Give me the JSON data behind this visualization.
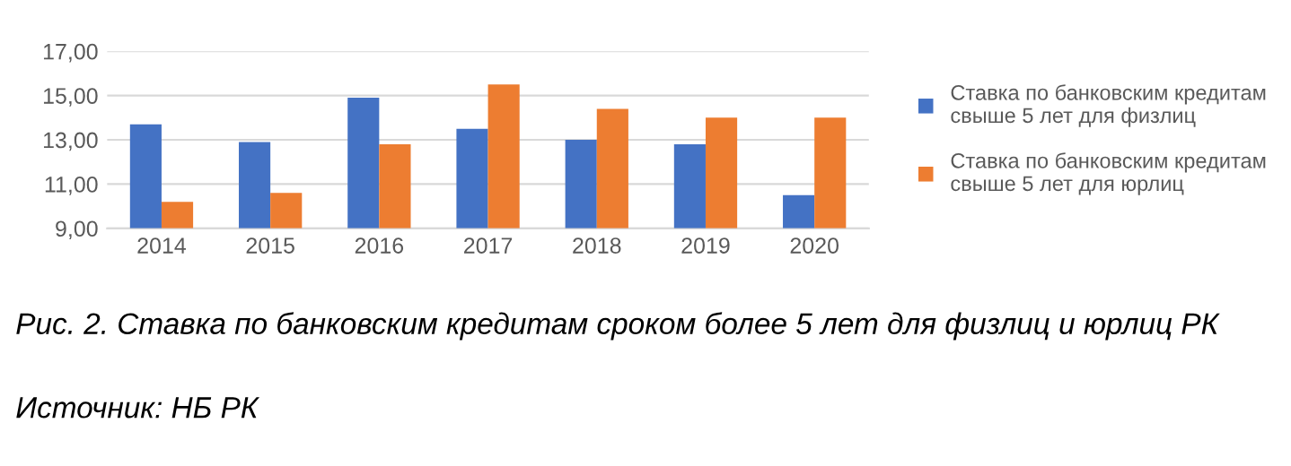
{
  "chart_data": {
    "type": "bar",
    "categories": [
      "2014",
      "2015",
      "2016",
      "2017",
      "2018",
      "2019",
      "2020"
    ],
    "series": [
      {
        "name": "Ставка по банковским кредитам\nсвыше 5 лет для физлиц",
        "color": "#4472c4",
        "values": [
          13.7,
          12.9,
          14.9,
          13.5,
          13.0,
          12.8,
          10.5
        ]
      },
      {
        "name": "Ставка по банковским кредитам\nсвыше 5 лет для юрлиц",
        "color": "#ed7d31",
        "values": [
          10.2,
          10.6,
          12.8,
          15.5,
          14.4,
          14.0,
          14.0
        ]
      }
    ],
    "ylim": [
      9,
      17
    ],
    "yticks": [
      {
        "value": 9,
        "label": "9,00"
      },
      {
        "value": 11,
        "label": "11,00"
      },
      {
        "value": 13,
        "label": "13,00"
      },
      {
        "value": 15,
        "label": "15,00"
      },
      {
        "value": 17,
        "label": "17,00"
      }
    ],
    "grid": "y",
    "legend": "right",
    "annotations": [
      "Рис. 2. Ставка по банковским кредитам сроком более 5 лет для физлиц и юрлиц РК",
      "Источник: НБ РК"
    ]
  }
}
